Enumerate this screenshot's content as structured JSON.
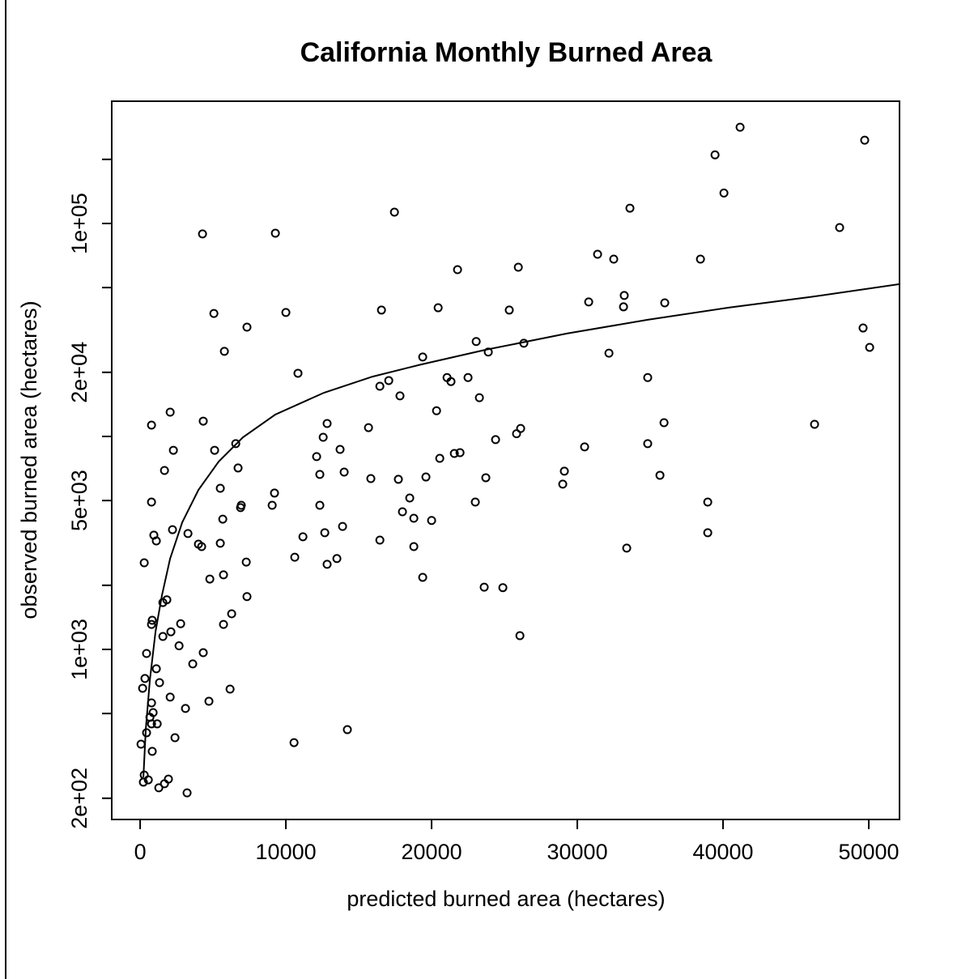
{
  "chart_data": {
    "type": "scatter",
    "title": "California Monthly Burned Area",
    "x_label": "predicted burned area (hectares)",
    "y_label": "observed burned area (hectares)",
    "log_y": true,
    "grid": false,
    "color": "#000000",
    "xlim": [
      -1950,
      52110
    ],
    "ylim": [
      159,
      375000
    ],
    "xticks": [
      0,
      10000,
      20000,
      30000,
      40000,
      50000
    ],
    "yticks": [
      {
        "value": 200,
        "label": "2e+02"
      },
      {
        "value": 500
      },
      {
        "value": 1000,
        "label": "1e+03"
      },
      {
        "value": 2000
      },
      {
        "value": 5000,
        "label": "5e+03"
      },
      {
        "value": 10000
      },
      {
        "value": 20000,
        "label": "2e+04"
      },
      {
        "value": 50000
      },
      {
        "value": 100000,
        "label": "1e+05"
      },
      {
        "value": 200000
      }
    ],
    "x": [
      41170,
      39450,
      49720,
      40060,
      33610,
      17450,
      4280,
      9280,
      48000,
      31390,
      32500,
      38450,
      25950,
      21780,
      33220,
      30780,
      33170,
      36000,
      5060,
      10000,
      16560,
      20450,
      25330,
      7330,
      49610,
      50060,
      23060,
      26330,
      5780,
      23890,
      32170,
      19390,
      10830,
      21060,
      22500,
      21330,
      34830,
      17060,
      16450,
      17830,
      23280,
      2060,
      20340,
      4330,
      780,
      12830,
      35950,
      46280,
      15670,
      26110,
      25830,
      12560,
      24390,
      6560,
      34830,
      30500,
      13720,
      2280,
      5110,
      21950,
      21560,
      12110,
      20560,
      6720,
      1670,
      14000,
      12330,
      29110,
      35670,
      23720,
      15830,
      19610,
      17720,
      29000,
      5500,
      9220,
      18500,
      780,
      23000,
      38950,
      6940,
      12330,
      9060,
      6890,
      18000,
      18780,
      5670,
      20000,
      2220,
      13890,
      3280,
      940,
      12670,
      38950,
      11170,
      1110,
      16450,
      5500,
      4000,
      4220,
      18780,
      33390,
      10610,
      13500,
      280,
      7280,
      12830,
      5720,
      4780,
      19390,
      23610,
      24890,
      7330,
      1830,
      1560,
      6280,
      830,
      2780,
      780,
      5720,
      2110,
      1560,
      26060,
      2670,
      4330,
      440,
      1110,
      3610,
      330,
      170,
      1330,
      2060,
      6170,
      4720,
      780,
      3110,
      890,
      670,
      1170,
      780,
      440,
      2390,
      14220,
      10560,
      60,
      830,
      280,
      560,
      220,
      1940,
      1670,
      1280,
      3220
    ],
    "values": [
      283000,
      210000,
      246000,
      139000,
      118000,
      113000,
      89300,
      90000,
      95700,
      71700,
      68000,
      68000,
      62300,
      60700,
      45900,
      42800,
      40600,
      42400,
      37800,
      38200,
      39200,
      40200,
      39200,
      32600,
      32300,
      26200,
      27900,
      27400,
      25100,
      24900,
      24600,
      23600,
      19800,
      18900,
      18900,
      18100,
      18900,
      18300,
      17200,
      15500,
      15200,
      13000,
      13200,
      11800,
      11300,
      11500,
      11600,
      11400,
      11000,
      10900,
      10300,
      9910,
      9660,
      9250,
      9250,
      8930,
      8690,
      8610,
      8610,
      8390,
      8320,
      8040,
      7890,
      7110,
      6920,
      6800,
      6630,
      6870,
      6570,
      6400,
      6340,
      6450,
      6290,
      5970,
      5710,
      5420,
      5140,
      4920,
      4920,
      4920,
      4750,
      4750,
      4750,
      4630,
      4430,
      4130,
      4090,
      4030,
      3650,
      3780,
      3500,
      3440,
      3530,
      3530,
      3380,
      3230,
      3260,
      3150,
      3120,
      3040,
      3040,
      2990,
      2710,
      2670,
      2550,
      2570,
      2510,
      2240,
      2140,
      2180,
      1960,
      1950,
      1770,
      1710,
      1660,
      1470,
      1370,
      1320,
      1310,
      1310,
      1210,
      1150,
      1160,
      1040,
      965,
      957,
      811,
      855,
      730,
      657,
      698,
      597,
      651,
      571,
      561,
      528,
      505,
      480,
      447,
      447,
      406,
      385,
      420,
      365,
      359,
      332,
      257,
      244,
      238,
      246,
      234,
      224,
      212
    ],
    "fit": {
      "x": [
        222,
        389,
        667,
        1056,
        1500,
        2056,
        2889,
        4000,
        5389,
        7056,
        9278,
        12611,
        15944,
        19278,
        23722,
        29278,
        34833,
        40389,
        45944,
        52111
      ],
      "values": [
        251,
        424,
        718,
        1213,
        1800,
        2667,
        3953,
        5610,
        7620,
        9910,
        12670,
        16040,
        19100,
        21780,
        25530,
        30410,
        35300,
        40270,
        45120,
        51900
      ]
    }
  }
}
